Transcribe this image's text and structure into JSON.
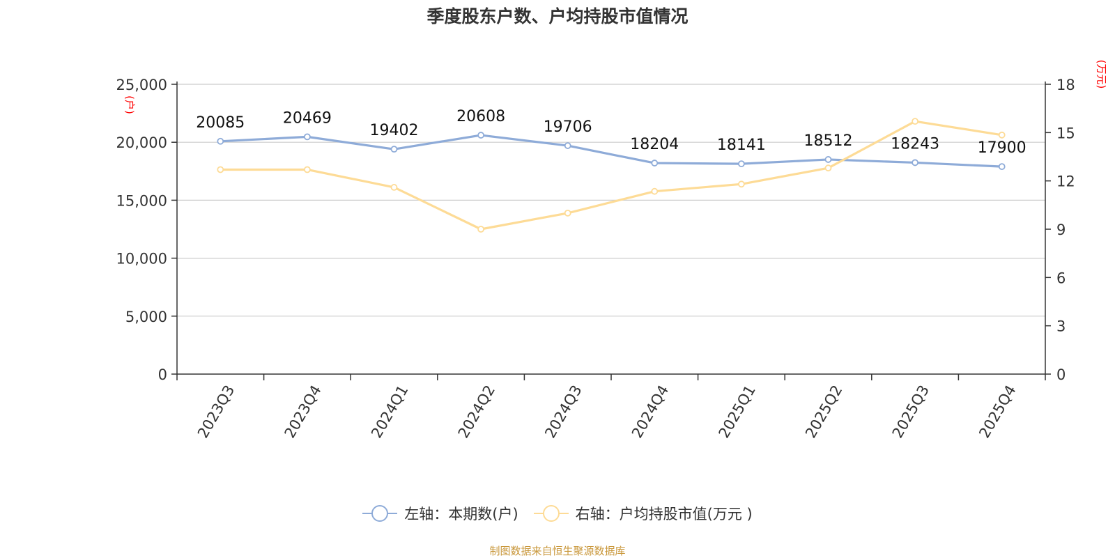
{
  "title": "季度股东户数、户均持股市值情况",
  "footer": "制图数据来自恒生聚源数据库",
  "left_unit": "(户)",
  "right_unit": "(万元)",
  "legend": {
    "left_label": "左轴：本期数(户)",
    "right_label": "右轴：户均持股市值(万元 )"
  },
  "colors": {
    "left_series": "#8eabd8",
    "right_series": "#fddb96",
    "unit": "#ff0000",
    "footer": "#c9973a"
  },
  "chart_data": {
    "type": "line",
    "title": "季度股东户数、户均持股市值情况",
    "categories": [
      "2023Q3",
      "2023Q4",
      "2024Q1",
      "2024Q2",
      "2024Q3",
      "2024Q4",
      "2025Q1",
      "2025Q2",
      "2025Q3",
      "2025Q4"
    ],
    "series": [
      {
        "name": "左轴：本期数(户)",
        "axis": "left",
        "values": [
          20085,
          20469,
          19402,
          20608,
          19706,
          18204,
          18141,
          18512,
          18243,
          17900
        ],
        "show_labels": true
      },
      {
        "name": "右轴：户均持股市值(万元 )",
        "axis": "right",
        "values": [
          12.7,
          12.7,
          11.6,
          9.0,
          10.0,
          11.35,
          11.8,
          12.8,
          15.7,
          14.85
        ],
        "show_labels": false
      }
    ],
    "y_left": {
      "min": 0,
      "max": 25000,
      "ticks": [
        "0",
        "5,000",
        "10,000",
        "15,000",
        "20,000",
        "25,000"
      ],
      "label": "(户)"
    },
    "y_right": {
      "min": 0,
      "max": 18,
      "ticks": [
        "0",
        "3",
        "6",
        "9",
        "12",
        "15",
        "18"
      ],
      "label": "(万元)"
    },
    "grid": true,
    "legend_position": "bottom"
  }
}
